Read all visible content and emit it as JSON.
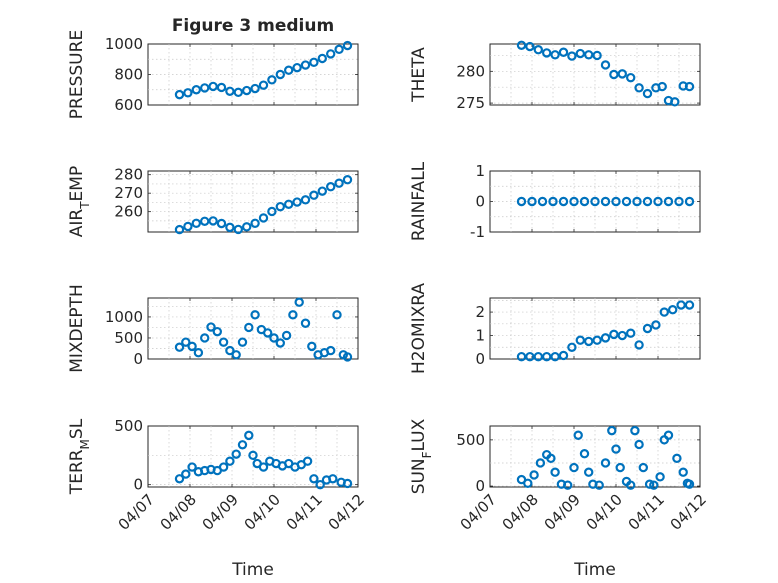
{
  "colors": {
    "series": "#0072BD",
    "text": "#262626",
    "grid": "#c8c8c8"
  },
  "chart_data": [
    {
      "type": "scatter",
      "title": "Figure 3 medium",
      "xlabel": "",
      "ylabel": "PRESSURE",
      "xlim": [
        7,
        12
      ],
      "xtick_labels": [
        "04/07",
        "04/08",
        "04/09",
        "04/10",
        "04/11",
        "04/12"
      ],
      "ylim": [
        600,
        1000
      ],
      "yticks": [
        600,
        800,
        1000
      ],
      "ytick_labels": [
        "600",
        "800",
        "1000"
      ],
      "series": [
        {
          "name": "PRESSURE",
          "x": [
            7.75,
            7.95,
            8.15,
            8.35,
            8.55,
            8.75,
            8.95,
            9.15,
            9.35,
            9.55,
            9.75,
            9.95,
            10.15,
            10.35,
            10.55,
            10.75,
            10.95,
            11.15,
            11.35,
            11.55,
            11.75
          ],
          "y": [
            668,
            680,
            700,
            712,
            722,
            715,
            690,
            683,
            695,
            708,
            730,
            765,
            800,
            828,
            845,
            862,
            880,
            905,
            935,
            965,
            990
          ]
        }
      ]
    },
    {
      "type": "scatter",
      "title": "",
      "xlabel": "",
      "ylabel": "THETA",
      "xlim": [
        7,
        12
      ],
      "xtick_labels": [
        "04/07",
        "04/08",
        "04/09",
        "04/10",
        "04/11",
        "04/12"
      ],
      "ylim": [
        274.7,
        284.3
      ],
      "yticks": [
        275,
        280
      ],
      "ytick_labels": [
        "275",
        "280"
      ],
      "series": [
        {
          "name": "THETA",
          "x": [
            7.75,
            7.95,
            8.15,
            8.35,
            8.55,
            8.75,
            8.95,
            9.15,
            9.35,
            9.55,
            9.75,
            9.95,
            10.15,
            10.35,
            10.55,
            10.75,
            10.95,
            11.1,
            11.25,
            11.4,
            11.6,
            11.75
          ],
          "y": [
            284.1,
            283.9,
            283.4,
            282.9,
            282.6,
            283.0,
            282.4,
            282.8,
            282.6,
            282.5,
            281.0,
            279.5,
            279.6,
            279.0,
            277.4,
            276.5,
            277.4,
            277.6,
            275.4,
            275.2,
            277.7,
            277.6
          ]
        }
      ]
    },
    {
      "type": "scatter",
      "title": "",
      "xlabel": "",
      "ylabel": "AIR_TEMP",
      "xlim": [
        7,
        12
      ],
      "xtick_labels": [
        "04/07",
        "04/08",
        "04/09",
        "04/10",
        "04/11",
        "04/12"
      ],
      "ylim": [
        249,
        282
      ],
      "yticks": [
        260,
        270,
        280
      ],
      "ytick_labels": [
        "260",
        "270",
        "280"
      ],
      "series": [
        {
          "name": "AIR_TEMP",
          "x": [
            7.75,
            7.95,
            8.15,
            8.35,
            8.55,
            8.75,
            8.95,
            9.15,
            9.35,
            9.55,
            9.75,
            9.95,
            10.15,
            10.35,
            10.55,
            10.75,
            10.95,
            11.15,
            11.35,
            11.55,
            11.75
          ],
          "y": [
            250.3,
            252.0,
            253.7,
            254.8,
            255.0,
            253.6,
            251.5,
            250.4,
            251.8,
            253.7,
            256.6,
            260.1,
            262.7,
            264.0,
            265.2,
            266.4,
            268.9,
            271.1,
            273.5,
            275.4,
            277.3
          ]
        }
      ]
    },
    {
      "type": "scatter",
      "title": "",
      "xlabel": "",
      "ylabel": "RAINFALL",
      "xlim": [
        7,
        12
      ],
      "xtick_labels": [
        "04/07",
        "04/08",
        "04/09",
        "04/10",
        "04/11",
        "04/12"
      ],
      "ylim": [
        -1,
        1
      ],
      "yticks": [
        -1,
        0,
        1
      ],
      "ytick_labels": [
        "-1",
        "0",
        "1"
      ],
      "series": [
        {
          "name": "RAINFALL",
          "x": [
            7.75,
            8.0,
            8.25,
            8.5,
            8.75,
            9.0,
            9.25,
            9.5,
            9.75,
            10.0,
            10.25,
            10.5,
            10.75,
            11.0,
            11.25,
            11.5,
            11.75
          ],
          "y": [
            0,
            0,
            0,
            0,
            0,
            0,
            0,
            0,
            0,
            0,
            0,
            0,
            0,
            0,
            0,
            0,
            0
          ]
        }
      ]
    },
    {
      "type": "scatter",
      "title": "",
      "xlabel": "",
      "ylabel": "MIXDEPTH",
      "xlim": [
        7,
        12
      ],
      "xtick_labels": [
        "04/07",
        "04/08",
        "04/09",
        "04/10",
        "04/11",
        "04/12"
      ],
      "ylim": [
        0,
        1450
      ],
      "yticks": [
        0,
        500,
        1000
      ],
      "ytick_labels": [
        "0",
        "500",
        "1000"
      ],
      "series": [
        {
          "name": "MIXDEPTH",
          "x": [
            7.75,
            7.9,
            8.05,
            8.2,
            8.35,
            8.5,
            8.65,
            8.8,
            8.95,
            9.1,
            9.25,
            9.4,
            9.55,
            9.7,
            9.85,
            10.0,
            10.15,
            10.3,
            10.45,
            10.6,
            10.75,
            10.9,
            11.05,
            11.2,
            11.35,
            11.5,
            11.65,
            11.75
          ],
          "y": [
            280,
            400,
            300,
            150,
            500,
            760,
            650,
            400,
            200,
            100,
            400,
            750,
            1050,
            700,
            620,
            500,
            380,
            560,
            1050,
            1350,
            850,
            300,
            100,
            150,
            200,
            1050,
            100,
            50
          ]
        }
      ]
    },
    {
      "type": "scatter",
      "title": "",
      "xlabel": "",
      "ylabel": "H2OMIXRA",
      "xlim": [
        7,
        12
      ],
      "xtick_labels": [
        "04/07",
        "04/08",
        "04/09",
        "04/10",
        "04/11",
        "04/12"
      ],
      "ylim": [
        0,
        2.6
      ],
      "yticks": [
        0,
        1,
        2
      ],
      "ytick_labels": [
        "0",
        "1",
        "2"
      ],
      "series": [
        {
          "name": "H2OMIXRA",
          "x": [
            7.75,
            7.95,
            8.15,
            8.35,
            8.55,
            8.75,
            8.95,
            9.15,
            9.35,
            9.55,
            9.75,
            9.95,
            10.15,
            10.35,
            10.55,
            10.75,
            10.95,
            11.15,
            11.35,
            11.55,
            11.75
          ],
          "y": [
            0.1,
            0.1,
            0.1,
            0.1,
            0.1,
            0.15,
            0.5,
            0.8,
            0.75,
            0.8,
            0.9,
            1.05,
            1.0,
            1.1,
            0.6,
            1.3,
            1.45,
            2.0,
            2.1,
            2.3,
            2.3
          ]
        }
      ]
    },
    {
      "type": "scatter",
      "title": "",
      "xlabel": "Time",
      "ylabel": "TERR_MSL",
      "xlim": [
        7,
        12
      ],
      "xtick_labels": [
        "04/07",
        "04/08",
        "04/09",
        "04/10",
        "04/11",
        "04/12"
      ],
      "ylim": [
        -20,
        500
      ],
      "yticks": [
        0,
        500
      ],
      "ytick_labels": [
        "0",
        "500"
      ],
      "series": [
        {
          "name": "TERR_MSL",
          "x": [
            7.75,
            7.9,
            8.05,
            8.2,
            8.35,
            8.5,
            8.65,
            8.8,
            8.95,
            9.1,
            9.25,
            9.4,
            9.5,
            9.6,
            9.75,
            9.9,
            10.05,
            10.2,
            10.35,
            10.5,
            10.65,
            10.8,
            10.95,
            11.1,
            11.25,
            11.4,
            11.6,
            11.75
          ],
          "y": [
            50,
            90,
            150,
            110,
            120,
            130,
            120,
            150,
            200,
            260,
            340,
            420,
            250,
            180,
            150,
            200,
            180,
            160,
            180,
            150,
            170,
            200,
            50,
            0,
            40,
            50,
            20,
            10
          ]
        }
      ]
    },
    {
      "type": "scatter",
      "title": "",
      "xlabel": "Time",
      "ylabel": "SUN_FLUX",
      "xlim": [
        7,
        12
      ],
      "xtick_labels": [
        "04/07",
        "04/08",
        "04/09",
        "04/10",
        "04/11",
        "04/12"
      ],
      "ylim": [
        -10,
        650
      ],
      "yticks": [
        0,
        500
      ],
      "ytick_labels": [
        "0",
        "500"
      ],
      "series": [
        {
          "name": "SUN_FLUX",
          "x": [
            7.75,
            7.9,
            8.05,
            8.2,
            8.35,
            8.45,
            8.55,
            8.7,
            8.85,
            9.0,
            9.1,
            9.25,
            9.35,
            9.45,
            9.6,
            9.75,
            9.9,
            10.0,
            10.1,
            10.25,
            10.35,
            10.45,
            10.55,
            10.65,
            10.8,
            10.9,
            11.05,
            11.15,
            11.25,
            11.45,
            11.6,
            11.7,
            11.75
          ],
          "y": [
            70,
            30,
            120,
            250,
            340,
            300,
            150,
            20,
            10,
            200,
            550,
            350,
            150,
            20,
            10,
            250,
            600,
            400,
            200,
            50,
            10,
            600,
            450,
            200,
            20,
            10,
            100,
            500,
            550,
            300,
            150,
            30,
            20
          ]
        }
      ]
    }
  ]
}
